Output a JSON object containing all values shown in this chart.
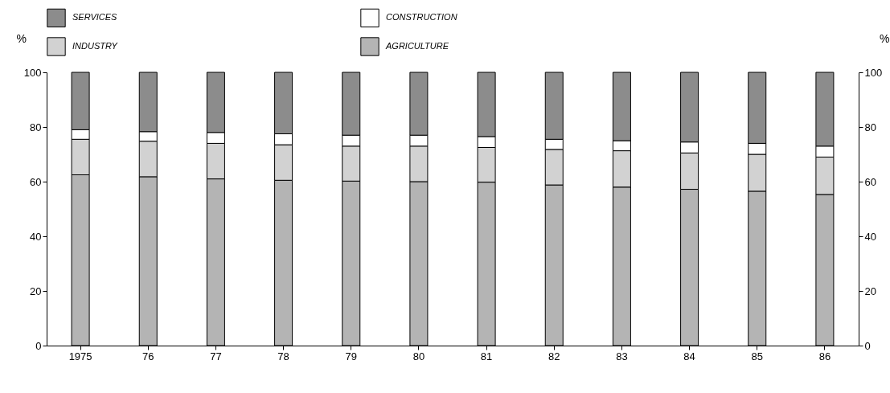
{
  "chart_data": {
    "type": "bar",
    "stacked": true,
    "categories": [
      "1975",
      "76",
      "77",
      "78",
      "79",
      "80",
      "81",
      "82",
      "83",
      "84",
      "85",
      "86"
    ],
    "series": [
      {
        "name": "AGRICULTURE",
        "color": "#b4b4b4",
        "values": [
          62.5,
          61.8,
          61,
          60.5,
          60.2,
          60,
          59.8,
          58.8,
          58,
          57.2,
          56.5,
          55.3
        ]
      },
      {
        "name": "INDUSTRY",
        "color": "#d2d2d2",
        "values": [
          13,
          13,
          13,
          13,
          12.8,
          13,
          12.7,
          13,
          13.3,
          13.3,
          13.5,
          13.7
        ]
      },
      {
        "name": "CONSTRUCTION",
        "color": "#ffffff",
        "values": [
          3.5,
          3.5,
          4,
          4,
          4,
          4,
          4,
          3.7,
          3.7,
          4,
          4,
          4
        ]
      },
      {
        "name": "SERVICES",
        "color": "#8c8c8c",
        "values": [
          21,
          21.7,
          22,
          22.5,
          23,
          23,
          23.5,
          24.5,
          25,
          25.5,
          26,
          27
        ]
      }
    ],
    "ylabel": "%",
    "y2label": "%",
    "ylim": [
      0,
      100
    ],
    "yticks": [
      0,
      20,
      40,
      60,
      80,
      100
    ],
    "y2lim": [
      0,
      100
    ],
    "y2ticks": [
      0,
      20,
      40,
      60,
      80,
      100
    ],
    "legend": "top",
    "grid": false
  }
}
